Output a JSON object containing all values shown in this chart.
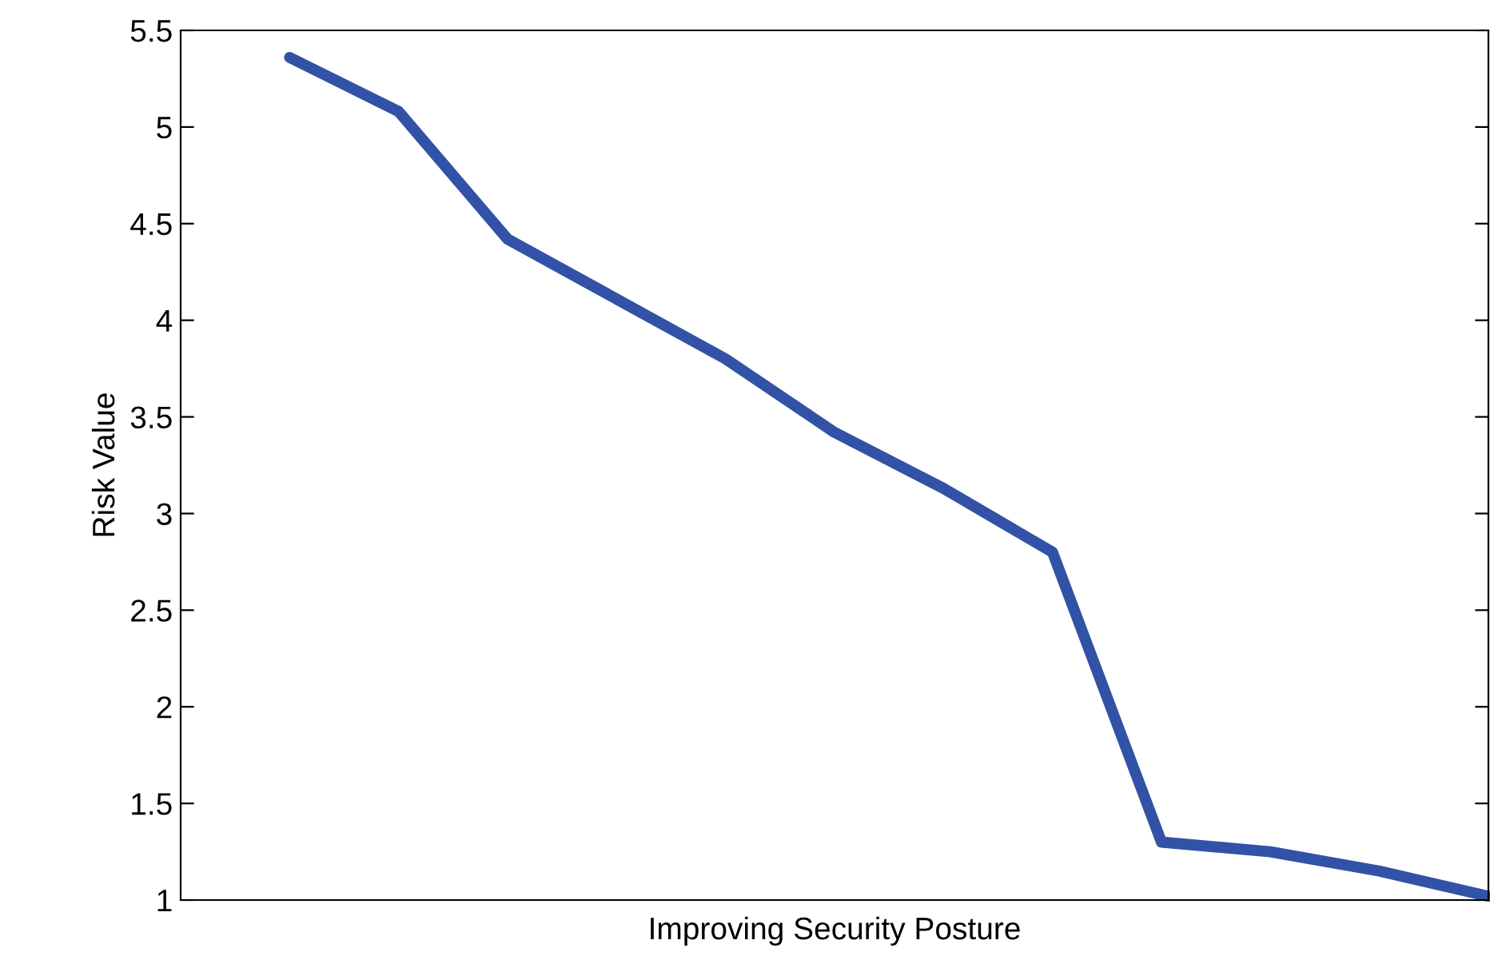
{
  "chart_data": {
    "type": "line",
    "xlabel": "Improving Security Posture",
    "ylabel": "Risk Value",
    "categories": [
      null,
      null,
      null,
      null,
      null,
      null,
      null,
      null,
      null,
      null,
      null,
      null
    ],
    "series": [
      {
        "color": "#3152a6",
        "values": [
          5.36,
          5.08,
          4.42,
          4.11,
          3.8,
          3.42,
          3.13,
          2.8,
          1.3,
          1.25,
          1.15,
          1.02
        ]
      }
    ],
    "ylim": [
      1,
      5.5
    ],
    "yticks": [
      1,
      1.5,
      2,
      2.5,
      3,
      3.5,
      4,
      4.5,
      5,
      5.5
    ],
    "grid": false,
    "marker": "none",
    "line_style": "solid"
  }
}
